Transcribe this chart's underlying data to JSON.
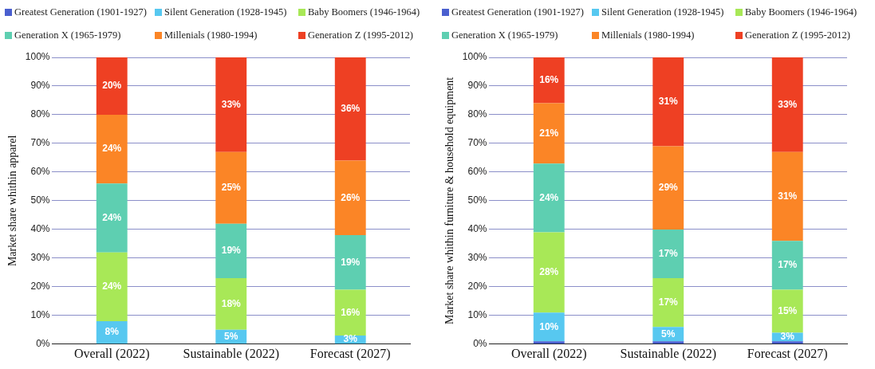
{
  "chart_data": [
    {
      "type": "bar",
      "stacked": true,
      "ylabel": "Market share whithin apparel",
      "categories": [
        "Overall (2022)",
        "Sustainable (2022)",
        "Forecast (2027)"
      ],
      "ylim": [
        0,
        100
      ],
      "yticks": [
        {
          "value": 0,
          "label": "0%"
        },
        {
          "value": 10,
          "label": "10%"
        },
        {
          "value": 20,
          "label": "20%"
        },
        {
          "value": 30,
          "label": "30%"
        },
        {
          "value": 40,
          "label": "40%"
        },
        {
          "value": 50,
          "label": "50%"
        },
        {
          "value": 60,
          "label": "60%"
        },
        {
          "value": 70,
          "label": "70%"
        },
        {
          "value": 80,
          "label": "80%"
        },
        {
          "value": 90,
          "label": "90%"
        },
        {
          "value": 100,
          "label": "100%"
        }
      ],
      "grid": "y",
      "legend": "top",
      "series": [
        {
          "name": "Greatest Generation (1901-1927)",
          "color": "#4a5fcf",
          "values": [
            0,
            0,
            0
          ],
          "value_labels": [
            null,
            null,
            null
          ]
        },
        {
          "name": "Silent Generation (1928-1945)",
          "color": "#57c8f0",
          "values": [
            8,
            5,
            3
          ],
          "value_labels": [
            "8%",
            "5%",
            "3%"
          ]
        },
        {
          "name": "Baby Boomers (1946-1964)",
          "color": "#a8e857",
          "values": [
            24,
            18,
            16
          ],
          "value_labels": [
            "24%",
            "18%",
            "16%"
          ]
        },
        {
          "name": "Generation X (1965-1979)",
          "color": "#5ecfb1",
          "values": [
            24,
            19,
            19
          ],
          "value_labels": [
            "24%",
            "19%",
            "19%"
          ]
        },
        {
          "name": "Millenials (1980-1994)",
          "color": "#fb8526",
          "values": [
            24,
            25,
            26
          ],
          "value_labels": [
            "24%",
            "25%",
            "26%"
          ]
        },
        {
          "name": "Generation Z (1995-2012)",
          "color": "#ee4023",
          "values": [
            20,
            33,
            36
          ],
          "value_labels": [
            "20%",
            "33%",
            "36%"
          ]
        }
      ]
    },
    {
      "type": "bar",
      "stacked": true,
      "ylabel": "Market share whithin furniture & household equipment",
      "categories": [
        "Overall (2022)",
        "Sustainable (2022)",
        "Forecast (2027)"
      ],
      "ylim": [
        0,
        100
      ],
      "yticks": [
        {
          "value": 0,
          "label": "0%"
        },
        {
          "value": 10,
          "label": "10%"
        },
        {
          "value": 20,
          "label": "20%"
        },
        {
          "value": 30,
          "label": "30%"
        },
        {
          "value": 40,
          "label": "40%"
        },
        {
          "value": 50,
          "label": "50%"
        },
        {
          "value": 60,
          "label": "60%"
        },
        {
          "value": 70,
          "label": "70%"
        },
        {
          "value": 80,
          "label": "80%"
        },
        {
          "value": 90,
          "label": "90%"
        },
        {
          "value": 100,
          "label": "100%"
        }
      ],
      "grid": "y",
      "legend": "top",
      "series": [
        {
          "name": "Greatest Generation (1901-1927)",
          "color": "#4a5fcf",
          "values": [
            1,
            1,
            1
          ],
          "value_labels": [
            null,
            null,
            null
          ]
        },
        {
          "name": "Silent Generation (1928-1945)",
          "color": "#57c8f0",
          "values": [
            10,
            5,
            3
          ],
          "value_labels": [
            "10%",
            "5%",
            "3%"
          ]
        },
        {
          "name": "Baby Boomers (1946-1964)",
          "color": "#a8e857",
          "values": [
            28,
            17,
            15
          ],
          "value_labels": [
            "28%",
            "17%",
            "15%"
          ]
        },
        {
          "name": "Generation X (1965-1979)",
          "color": "#5ecfb1",
          "values": [
            24,
            17,
            17
          ],
          "value_labels": [
            "24%",
            "17%",
            "17%"
          ]
        },
        {
          "name": "Millenials (1980-1994)",
          "color": "#fb8526",
          "values": [
            21,
            29,
            31
          ],
          "value_labels": [
            "21%",
            "29%",
            "31%"
          ]
        },
        {
          "name": "Generation Z (1995-2012)",
          "color": "#ee4023",
          "values": [
            16,
            31,
            33
          ],
          "value_labels": [
            "16%",
            "31%",
            "33%"
          ]
        }
      ]
    }
  ]
}
